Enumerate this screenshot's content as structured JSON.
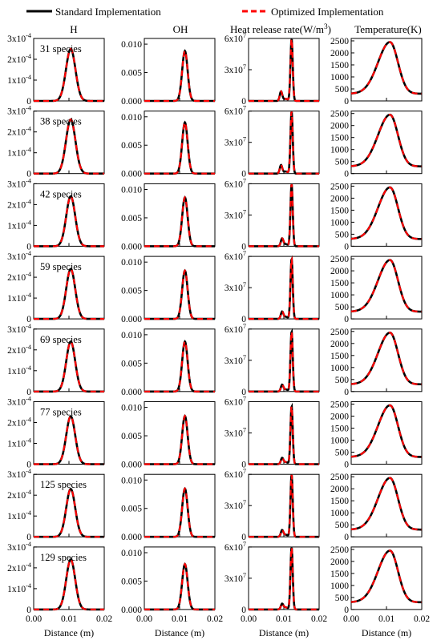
{
  "legend": {
    "items": [
      {
        "label": "Standard Implementation",
        "color": "#000000",
        "style": "solid"
      },
      {
        "label": "Optimized Implementation",
        "color": "#ff0000",
        "style": "dashed"
      }
    ],
    "placement": "top-center"
  },
  "columns": [
    {
      "title": "H",
      "ticks": [
        {
          "label": "0"
        },
        {
          "label": "1x10",
          "sup": "-4"
        },
        {
          "label": "2x10",
          "sup": "-4"
        },
        {
          "label": "3x10",
          "sup": "-4"
        }
      ]
    },
    {
      "title": "OH",
      "ticks": [
        {
          "label": "0.000"
        },
        {
          "label": "0.005"
        },
        {
          "label": "0.010"
        }
      ]
    },
    {
      "title": "Heat release rate(W/m",
      "title_sup": "3",
      "title_end": ")",
      "ticks": [
        {
          "label": "0"
        },
        {
          "label": "3x10",
          "sup": "7"
        },
        {
          "label": "6x10",
          "sup": "7"
        }
      ]
    },
    {
      "title": "Temperature(K)",
      "ticks": [
        {
          "label": "0"
        },
        {
          "label": "500"
        },
        {
          "label": "1000"
        },
        {
          "label": "1500"
        },
        {
          "label": "2000"
        },
        {
          "label": "2500"
        }
      ]
    }
  ],
  "rows": [
    {
      "label": "31 species"
    },
    {
      "label": "38 species"
    },
    {
      "label": "42 species"
    },
    {
      "label": "59 species"
    },
    {
      "label": "69 species"
    },
    {
      "label": "77 species"
    },
    {
      "label": "125 species"
    },
    {
      "label": "129 species"
    }
  ],
  "x_axis": {
    "label": "Distance (m)",
    "ticks": [
      "0.00",
      "0.01",
      "0.02"
    ]
  },
  "chart_data": {
    "type": "line",
    "layout": "grid 8 rows x 4 columns",
    "xlim": [
      0,
      0.02
    ],
    "series_names": [
      "Standard Implementation",
      "Optimized Implementation"
    ],
    "note_overlap": "Both series coincide in every panel",
    "columns": [
      {
        "quantity": "H",
        "ylim": [
          0,
          0.0003
        ],
        "shape": "gaussian",
        "peaks": [
          {
            "row": "31 species",
            "x_peak": 0.0105,
            "y_peak": 0.00025,
            "width": 0.0019
          },
          {
            "row": "38 species",
            "x_peak": 0.0105,
            "y_peak": 0.00026,
            "width": 0.0019
          },
          {
            "row": "42 species",
            "x_peak": 0.0105,
            "y_peak": 0.00024,
            "width": 0.0018
          },
          {
            "row": "59 species",
            "x_peak": 0.0105,
            "y_peak": 0.00024,
            "width": 0.0018
          },
          {
            "row": "69 species",
            "x_peak": 0.0105,
            "y_peak": 0.00024,
            "width": 0.0018
          },
          {
            "row": "77 species",
            "x_peak": 0.0105,
            "y_peak": 0.00023,
            "width": 0.0018
          },
          {
            "row": "125 species",
            "x_peak": 0.0105,
            "y_peak": 0.00023,
            "width": 0.0018
          },
          {
            "row": "129 species",
            "x_peak": 0.0105,
            "y_peak": 0.00024,
            "width": 0.0018
          }
        ]
      },
      {
        "quantity": "OH",
        "ylim": [
          0,
          0.011
        ],
        "shape": "gaussian",
        "peaks": [
          {
            "row": "31 species",
            "x_peak": 0.0115,
            "y_peak": 0.0088,
            "width": 0.0011
          },
          {
            "row": "38 species",
            "x_peak": 0.0115,
            "y_peak": 0.009,
            "width": 0.0011
          },
          {
            "row": "42 species",
            "x_peak": 0.0115,
            "y_peak": 0.0086,
            "width": 0.0011
          },
          {
            "row": "59 species",
            "x_peak": 0.0115,
            "y_peak": 0.0085,
            "width": 0.0011
          },
          {
            "row": "69 species",
            "x_peak": 0.0115,
            "y_peak": 0.0088,
            "width": 0.0011
          },
          {
            "row": "77 species",
            "x_peak": 0.0115,
            "y_peak": 0.0085,
            "width": 0.0011
          },
          {
            "row": "125 species",
            "x_peak": 0.0115,
            "y_peak": 0.0085,
            "width": 0.0011
          },
          {
            "row": "129 species",
            "x_peak": 0.0115,
            "y_peak": 0.008,
            "width": 0.0011
          }
        ]
      },
      {
        "quantity": "Heat release rate",
        "ylim": [
          0,
          60000000
        ],
        "shape": "sharp peak with shoulder",
        "peaks": [
          {
            "row": "31 species",
            "x_peak": 0.0122,
            "y_peak": 60000000,
            "shoulder_x": 0.0092,
            "shoulder_y": 9000000
          },
          {
            "row": "38 species",
            "x_peak": 0.0122,
            "y_peak": 60000000,
            "shoulder_x": 0.0092,
            "shoulder_y": 8000000
          },
          {
            "row": "42 species",
            "x_peak": 0.0122,
            "y_peak": 60000000,
            "shoulder_x": 0.0095,
            "shoulder_y": 7000000
          },
          {
            "row": "59 species",
            "x_peak": 0.0122,
            "y_peak": 58000000,
            "shoulder_x": 0.0095,
            "shoulder_y": 6500000
          },
          {
            "row": "69 species",
            "x_peak": 0.0122,
            "y_peak": 58000000,
            "shoulder_x": 0.0095,
            "shoulder_y": 6000000
          },
          {
            "row": "77 species",
            "x_peak": 0.0122,
            "y_peak": 56000000,
            "shoulder_x": 0.0095,
            "shoulder_y": 5500000
          },
          {
            "row": "125 species",
            "x_peak": 0.0122,
            "y_peak": 60000000,
            "shoulder_x": 0.0095,
            "shoulder_y": 6000000
          },
          {
            "row": "129 species",
            "x_peak": 0.0122,
            "y_peak": 60000000,
            "shoulder_x": 0.0095,
            "shoulder_y": 5000000
          }
        ]
      },
      {
        "quantity": "Temperature",
        "ylim": [
          0,
          2600
        ],
        "shape": "asymmetric peak",
        "peaks": [
          {
            "row": "31 species",
            "x_peak": 0.011,
            "y_peak": 2450,
            "y_left": 300,
            "y_right": 300
          },
          {
            "row": "38 species",
            "x_peak": 0.011,
            "y_peak": 2450,
            "y_left": 300,
            "y_right": 300
          },
          {
            "row": "42 species",
            "x_peak": 0.011,
            "y_peak": 2450,
            "y_left": 300,
            "y_right": 300
          },
          {
            "row": "59 species",
            "x_peak": 0.011,
            "y_peak": 2450,
            "y_left": 300,
            "y_right": 300
          },
          {
            "row": "69 species",
            "x_peak": 0.011,
            "y_peak": 2450,
            "y_left": 300,
            "y_right": 300
          },
          {
            "row": "77 species",
            "x_peak": 0.011,
            "y_peak": 2450,
            "y_left": 300,
            "y_right": 300
          },
          {
            "row": "125 species",
            "x_peak": 0.011,
            "y_peak": 2450,
            "y_left": 300,
            "y_right": 300
          },
          {
            "row": "129 species",
            "x_peak": 0.011,
            "y_peak": 2450,
            "y_left": 300,
            "y_right": 300
          }
        ]
      }
    ]
  }
}
